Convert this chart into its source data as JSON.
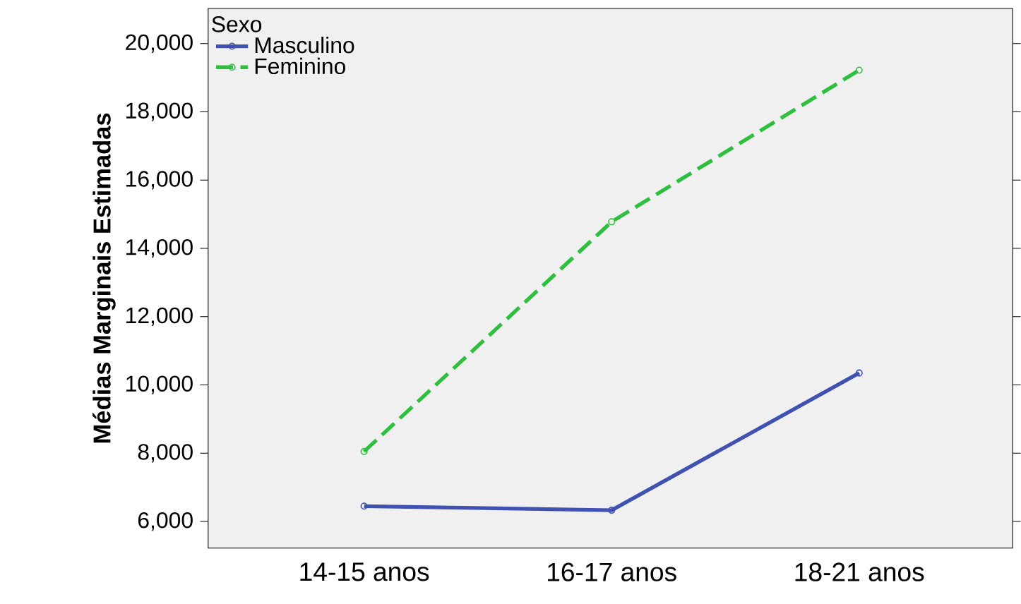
{
  "chart_data": {
    "type": "line",
    "ylabel": "Médias Marginais Estimadas",
    "legend_title": "Sexo",
    "categories": [
      "14-15 anos",
      "16-17 anos",
      "18-21 anos"
    ],
    "series": [
      {
        "name": "Masculino",
        "color": "#3f51b1",
        "values": [
          6450,
          6330,
          10350
        ],
        "line_style": "solid"
      },
      {
        "name": "Feminino",
        "color": "#2fbf3f",
        "values": [
          8050,
          14780,
          19220
        ],
        "line_style": "dashed"
      }
    ],
    "ylim": [
      5220,
      21030
    ],
    "yticks": [
      {
        "value": 6000,
        "label": "6,000"
      },
      {
        "value": 8000,
        "label": "8,000"
      },
      {
        "value": 10000,
        "label": "10,000"
      },
      {
        "value": 12000,
        "label": "12,000"
      },
      {
        "value": 14000,
        "label": "14,000"
      },
      {
        "value": 16000,
        "label": "16,000"
      },
      {
        "value": 18000,
        "label": "18,000"
      },
      {
        "value": 20000,
        "label": "20,000"
      }
    ],
    "legend": "top left",
    "marker": "circle",
    "grid": false
  }
}
